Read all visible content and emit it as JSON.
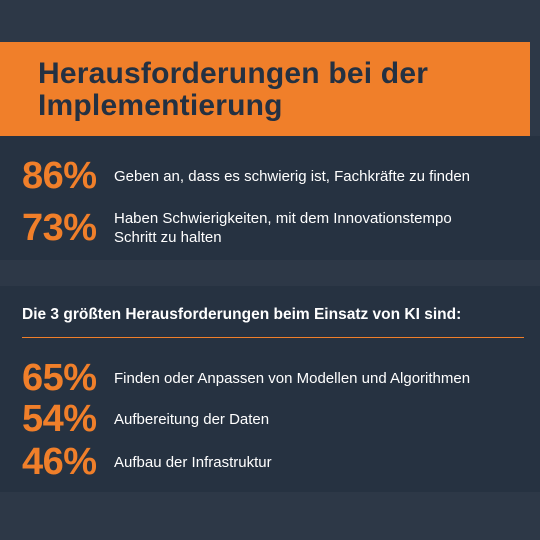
{
  "title_line1": "Herausforderungen bei der",
  "title_line2": "Implementierung",
  "accent_color": "#f07f2a",
  "background_color": "#2d3847",
  "top_stats": [
    {
      "value": "86%",
      "text": "Geben an, dass es schwierig ist, Fachkräfte zu finden"
    },
    {
      "value": "73%",
      "text_line1": "Haben Schwierigkeiten, mit dem Innovationstempo",
      "text_line2": "Schritt zu halten"
    }
  ],
  "subheading": "Die 3 größten Herausforderungen beim Einsatz von KI sind:",
  "bottom_stats": [
    {
      "value": "65%",
      "text": "Finden oder Anpassen von Modellen und Algorithmen"
    },
    {
      "value": "54%",
      "text": "Aufbereitung der Daten"
    },
    {
      "value": "46%",
      "text": "Aufbau der Infrastruktur"
    }
  ],
  "chart_data": {
    "type": "table",
    "title": "Herausforderungen bei der Implementierung",
    "rows": [
      {
        "label": "Geben an, dass es schwierig ist, Fachkräfte zu finden",
        "value": 86
      },
      {
        "label": "Haben Schwierigkeiten, mit dem Innovationstempo Schritt zu halten",
        "value": 73
      },
      {
        "label": "Finden oder Anpassen von Modellen und Algorithmen",
        "value": 65
      },
      {
        "label": "Aufbereitung der Daten",
        "value": 54
      },
      {
        "label": "Aufbau der Infrastruktur",
        "value": 46
      }
    ]
  }
}
